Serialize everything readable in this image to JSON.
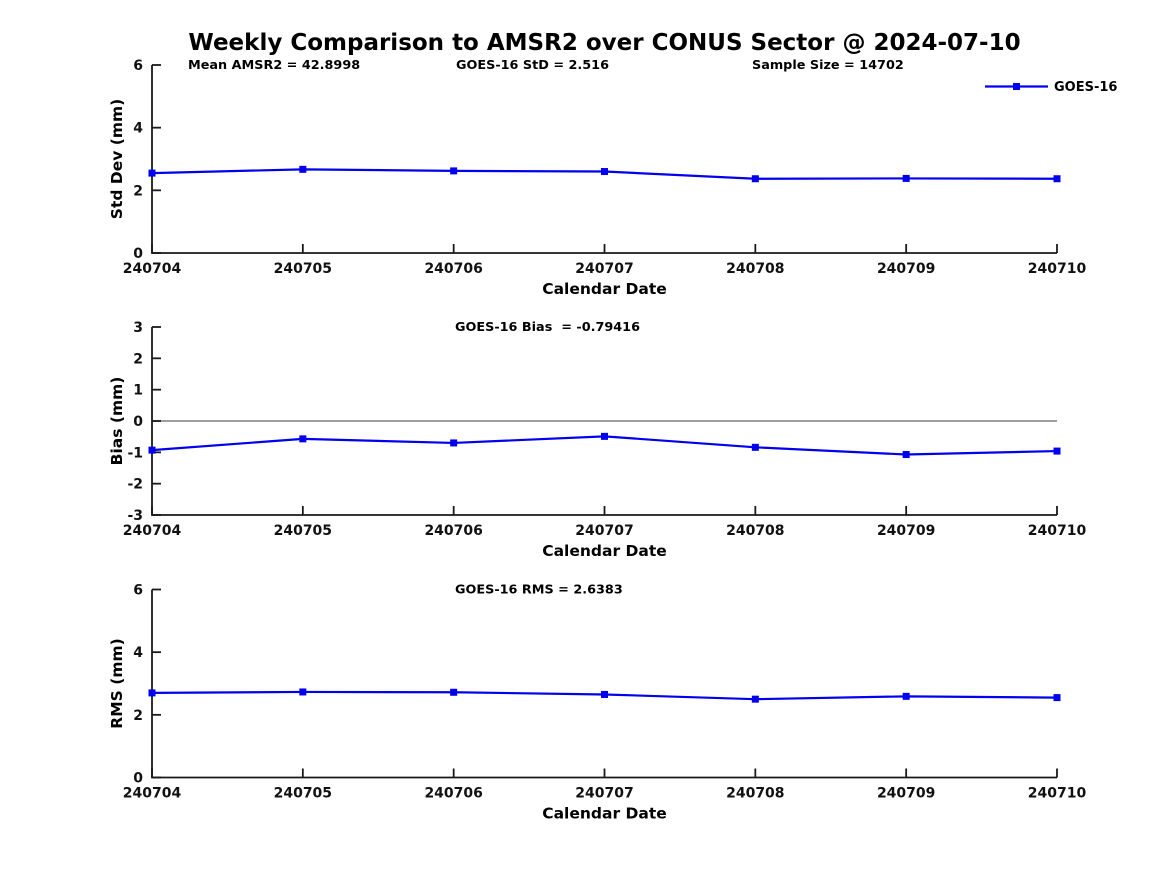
{
  "figure": {
    "title": "Weekly Comparison to AMSR2 over CONUS Sector @ 2024-07-10"
  },
  "colors": {
    "series": "#0000ee",
    "axis": "#1a1a1a",
    "text": "#000000",
    "zero_line": "#7f7f7f",
    "background": "#ffffff"
  },
  "chart_data": [
    {
      "type": "line",
      "name": "std-dev",
      "annotations": [
        "Mean AMSR2 = 42.8998",
        "GOES-16 StD = 2.516",
        "Sample Size = 14702"
      ],
      "xlabel": "Calendar Date",
      "ylabel": "Std Dev (mm)",
      "categories": [
        "240704",
        "240705",
        "240706",
        "240707",
        "240708",
        "240709",
        "240710"
      ],
      "series": [
        {
          "name": "GOES-16",
          "values": [
            2.55,
            2.67,
            2.62,
            2.6,
            2.37,
            2.38,
            2.37
          ]
        }
      ],
      "ylim": [
        0,
        6
      ],
      "yticks": [
        0,
        2,
        4,
        6
      ],
      "zero_line": false,
      "grid": false,
      "legend": {
        "visible": true,
        "label": "GOES-16",
        "position": "northeast"
      }
    },
    {
      "type": "line",
      "name": "bias",
      "annotations": [
        "GOES-16 Bias  = -0.79416"
      ],
      "xlabel": "Calendar Date",
      "ylabel": "Bias (mm)",
      "categories": [
        "240704",
        "240705",
        "240706",
        "240707",
        "240708",
        "240709",
        "240710"
      ],
      "series": [
        {
          "name": "GOES-16",
          "values": [
            -0.93,
            -0.57,
            -0.7,
            -0.49,
            -0.84,
            -1.07,
            -0.96
          ]
        }
      ],
      "ylim": [
        -3,
        3
      ],
      "yticks": [
        -3,
        -2,
        -1,
        0,
        1,
        2,
        3
      ],
      "zero_line": true,
      "grid": false,
      "legend": {
        "visible": false,
        "label": "GOES-16",
        "position": "northeast"
      }
    },
    {
      "type": "line",
      "name": "rms",
      "annotations": [
        "GOES-16 RMS = 2.6383"
      ],
      "xlabel": "Calendar Date",
      "ylabel": "RMS (mm)",
      "categories": [
        "240704",
        "240705",
        "240706",
        "240707",
        "240708",
        "240709",
        "240710"
      ],
      "series": [
        {
          "name": "GOES-16",
          "values": [
            2.7,
            2.73,
            2.72,
            2.65,
            2.5,
            2.59,
            2.55
          ]
        }
      ],
      "ylim": [
        0,
        6
      ],
      "yticks": [
        0,
        2,
        4,
        6
      ],
      "zero_line": false,
      "grid": false,
      "legend": {
        "visible": false,
        "label": "GOES-16",
        "position": "northeast"
      }
    }
  ]
}
